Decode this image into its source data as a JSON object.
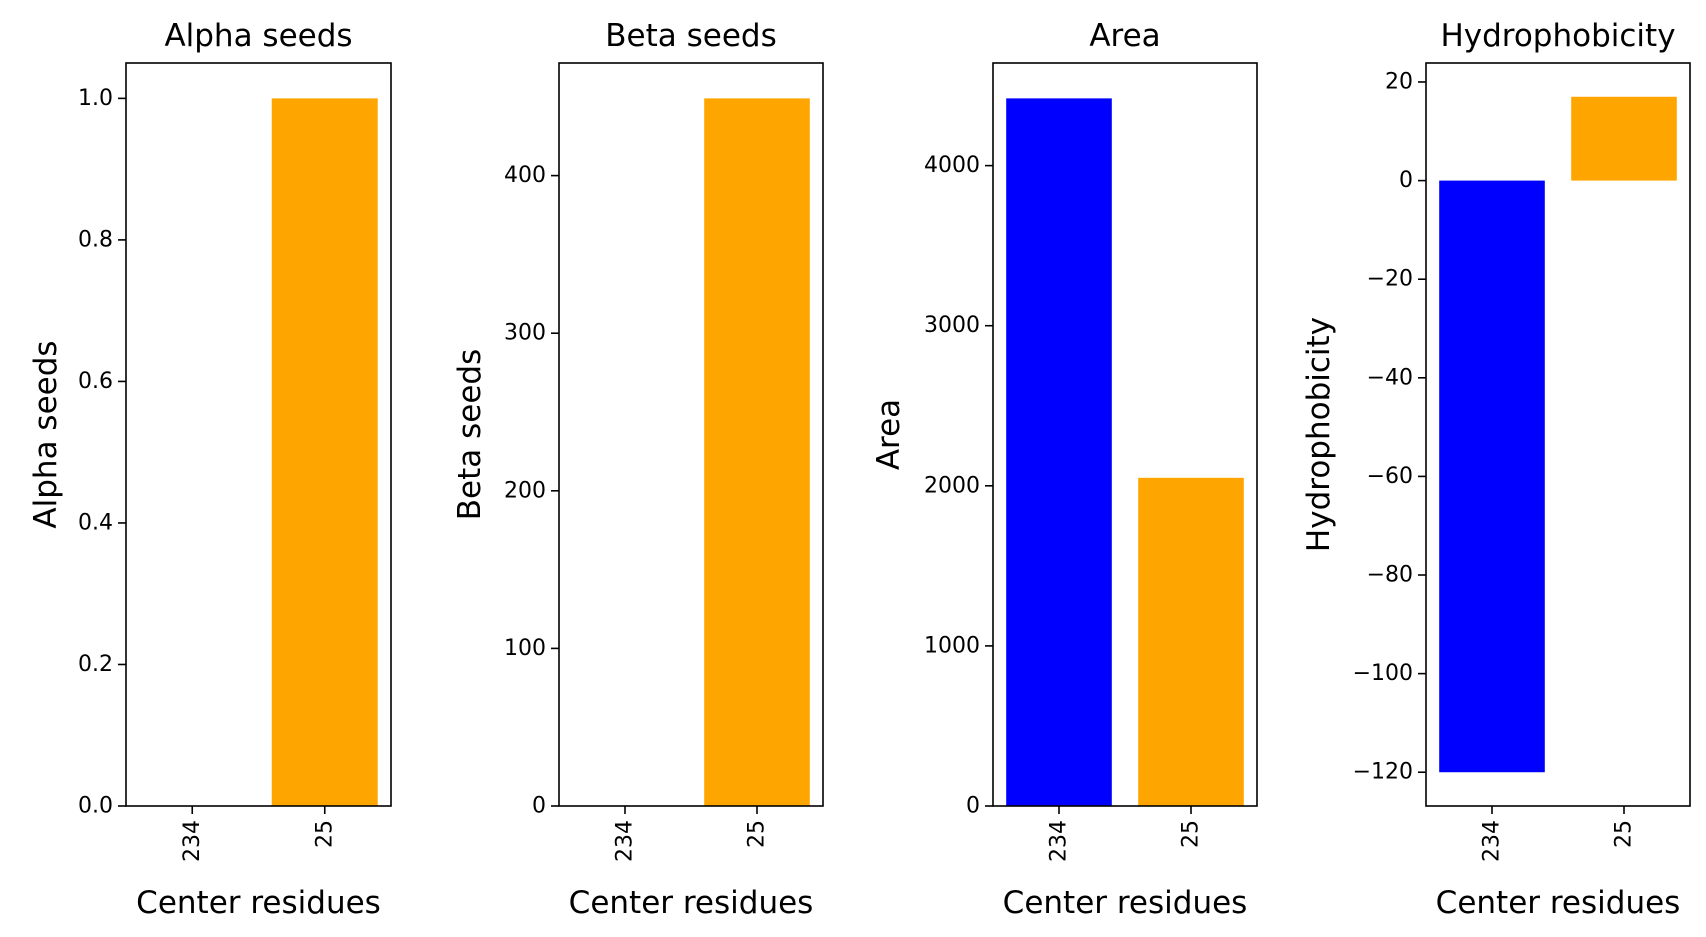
{
  "chart_data": [
    {
      "type": "bar",
      "title": "Alpha seeds",
      "xlabel": "Center residues",
      "ylabel": "Alpha seeds",
      "categories": [
        "234",
        "25"
      ],
      "values": [
        0,
        1.0
      ],
      "colors": [
        "#0000ff",
        "#ffa500"
      ],
      "ylim": [
        0,
        1.05
      ],
      "yticks": [
        0.0,
        0.2,
        0.4,
        0.6,
        0.8,
        1.0
      ],
      "ytick_labels": [
        "0.0",
        "0.2",
        "0.4",
        "0.6",
        "0.8",
        "1.0"
      ]
    },
    {
      "type": "bar",
      "title": "Beta seeds",
      "xlabel": "Center residues",
      "ylabel": "Beta seeds",
      "categories": [
        "234",
        "25"
      ],
      "values": [
        0,
        449
      ],
      "colors": [
        "#0000ff",
        "#ffa500"
      ],
      "ylim": [
        0,
        471.45
      ],
      "yticks": [
        0,
        100,
        200,
        300,
        400
      ],
      "ytick_labels": [
        "0",
        "100",
        "200",
        "300",
        "400"
      ]
    },
    {
      "type": "bar",
      "title": "Area",
      "xlabel": "Center residues",
      "ylabel": "Area",
      "categories": [
        "234",
        "25"
      ],
      "values": [
        4420,
        2050
      ],
      "colors": [
        "#0000ff",
        "#ffa500"
      ],
      "ylim": [
        0,
        4641
      ],
      "yticks": [
        0,
        1000,
        2000,
        3000,
        4000
      ],
      "ytick_labels": [
        "0",
        "1000",
        "2000",
        "3000",
        "4000"
      ]
    },
    {
      "type": "bar",
      "title": "Hydrophobicity",
      "xlabel": "Center residues",
      "ylabel": "Hydrophobicity",
      "categories": [
        "234",
        "25"
      ],
      "values": [
        -120,
        17
      ],
      "colors": [
        "#0000ff",
        "#ffa500"
      ],
      "ylim": [
        -126.85,
        23.85
      ],
      "yticks": [
        -120,
        -100,
        -80,
        -60,
        -40,
        -20,
        0,
        20
      ],
      "ytick_labels": [
        "−120",
        "−100",
        "−80",
        "−60",
        "−40",
        "−20",
        "0",
        "20"
      ]
    }
  ]
}
